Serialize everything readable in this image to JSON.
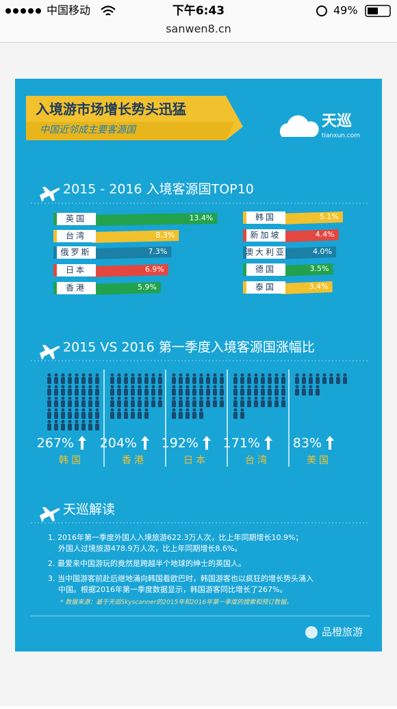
{
  "status_bar": {
    "carrier": "中国移动",
    "time": "下午6:43",
    "battery": "49%"
  },
  "url": "sanwen8.cn",
  "header": {
    "title": "入境游市场增长势头迅猛",
    "subtitle": "中国近邻成主要客源国",
    "logo": "天巡",
    "logo_domain": "tianxun.com"
  },
  "top10": {
    "title": "2015 - 2016 入境客源国TOP10",
    "columns": [
      [
        {
          "name": "英国",
          "value": 13.4,
          "value_label": "13.4%",
          "color": "#22a24c"
        },
        {
          "name": "台湾",
          "value": 8.3,
          "value_label": "8.3%",
          "color": "#f2c12e"
        },
        {
          "name": "俄罗斯",
          "value": 7.3,
          "value_label": "7.3%",
          "color": "#1b7fa6"
        },
        {
          "name": "日本",
          "value": 6.9,
          "value_label": "6.9%",
          "color": "#e3473f"
        },
        {
          "name": "香港",
          "value": 5.9,
          "value_label": "5.9%",
          "color": "#22a24c"
        }
      ],
      [
        {
          "name": "韩国",
          "value": 5.1,
          "value_label": "5.1%",
          "color": "#f2c12e"
        },
        {
          "name": "新加坡",
          "value": 4.4,
          "value_label": "4.4%",
          "color": "#e3473f"
        },
        {
          "name": "澳大利亚",
          "value": 4.0,
          "value_label": "4.0%",
          "color": "#1b7fa6"
        },
        {
          "name": "德国",
          "value": 3.5,
          "value_label": "3.5%",
          "color": "#22a24c"
        },
        {
          "name": "泰国",
          "value": 3.4,
          "value_label": "3.4%",
          "color": "#f2c12e"
        }
      ]
    ]
  },
  "growth": {
    "title": "2015 VS 2016 第一季度入境客源国涨幅比",
    "items": [
      {
        "value": 267,
        "value_label": "267%",
        "name": "韩国"
      },
      {
        "value": 204,
        "value_label": "204%",
        "name": "香港"
      },
      {
        "value": 192,
        "value_label": "192%",
        "name": "日本"
      },
      {
        "value": 171,
        "value_label": "171%",
        "name": "台湾"
      },
      {
        "value": 83,
        "value_label": "83%",
        "name": "美国"
      }
    ]
  },
  "reading": {
    "title": "天巡解读",
    "items": [
      [
        "1. 2016年第一季度外国人入境旅游622.3万人次，比上年同期增长10.9%；",
        "外国人过境旅游478.9万人次，比上年同期增长8.6%。"
      ],
      [
        "2. 最爱来中国游玩的竟然是跨越半个地球的绅士的英国人。"
      ],
      [
        "3. 当中国游客前赴后继地涌向韩国看欧巴时，韩国游客也以疯狂的增长势头涌入",
        "中国。根据2016年第一季度数据显示，韩国游客同比增长了267%。"
      ]
    ],
    "note": "* 数据来源：基于天巡Skyscanner的2015年和2016年第一季度的搜索和预订数据。"
  },
  "footer": "品橙旅游"
}
